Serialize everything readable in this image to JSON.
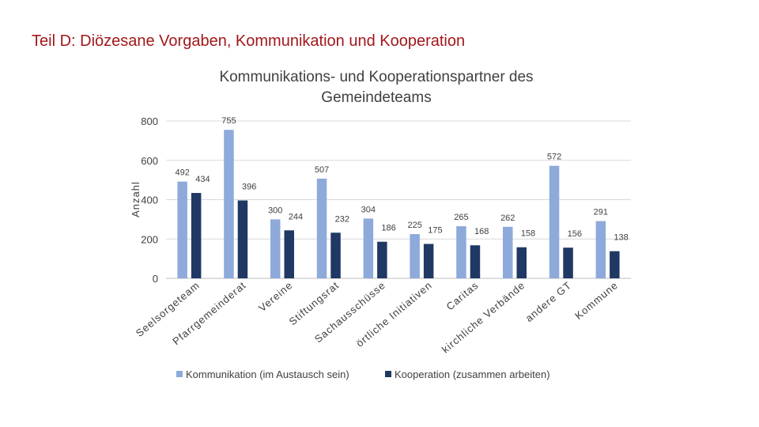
{
  "slide": {
    "title": "Teil D: Diözesane Vorgaben, Kommunikation und Kooperation"
  },
  "chart_data": {
    "type": "bar",
    "title": "Kommunikations- und Kooperationspartner des Gemeindeteams",
    "title_lines": [
      "Kommunikations- und Kooperationspartner des",
      "Gemeindeteams"
    ],
    "xlabel": "",
    "ylabel": "Anzahl",
    "ylim": [
      0,
      800
    ],
    "yticks": [
      0,
      200,
      400,
      600,
      800
    ],
    "grid": true,
    "legend_position": "bottom",
    "categories": [
      "Seelsorgeteam",
      "Pfarrgemeinderat",
      "Vereine",
      "Stiftungsrat",
      "Sachausschüsse",
      "örtliche Initiativen",
      "Caritas",
      "kirchliche Verbände",
      "andere GT",
      "Kommune"
    ],
    "series": [
      {
        "name": "Kommunikation (im Austausch sein)",
        "color": "#8eaadb",
        "values": [
          492,
          755,
          300,
          507,
          304,
          225,
          265,
          262,
          572,
          291
        ]
      },
      {
        "name": "Kooperation (zusammen arbeiten)",
        "color": "#203864",
        "values": [
          434,
          396,
          244,
          232,
          186,
          175,
          168,
          158,
          156,
          138
        ]
      }
    ]
  }
}
